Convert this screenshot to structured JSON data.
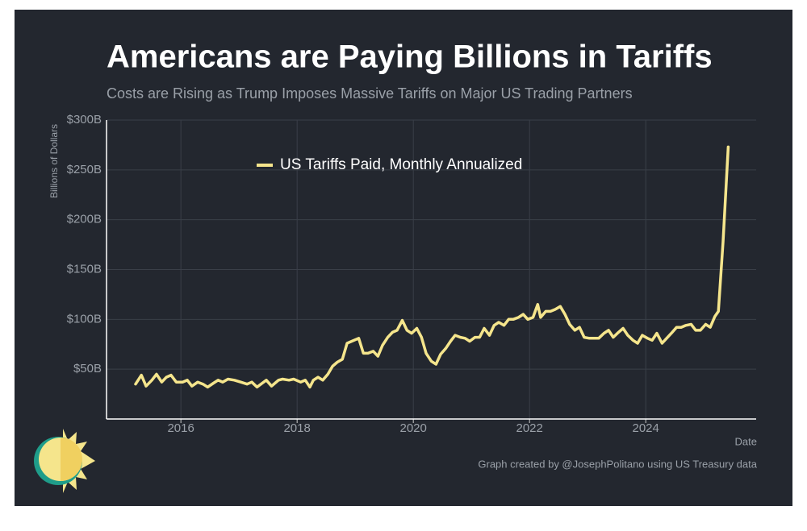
{
  "chart_data": {
    "type": "line",
    "title": "Americans are Paying Billions in Tariffs",
    "subtitle": "Costs are Rising as Trump Imposes Massive Tariffs on Major US Trading Partners",
    "y_label": "Billions of Dollars",
    "x_label": "Date",
    "source": "Graph created by @JosephPolitano using US Treasury data",
    "x": [
      2015.22,
      2015.32,
      2015.4,
      2015.5,
      2015.58,
      2015.67,
      2015.75,
      2015.83,
      2015.92,
      2016.03,
      2016.11,
      2016.19,
      2016.29,
      2016.38,
      2016.46,
      2016.56,
      2016.64,
      2016.72,
      2016.81,
      2016.92,
      2017.03,
      2017.14,
      2017.22,
      2017.31,
      2017.4,
      2017.47,
      2017.56,
      2017.68,
      2017.75,
      2017.86,
      2017.94,
      2018.06,
      2018.14,
      2018.22,
      2018.28,
      2018.36,
      2018.44,
      2018.53,
      2018.61,
      2018.69,
      2018.78,
      2018.86,
      2018.94,
      2019.06,
      2019.14,
      2019.22,
      2019.31,
      2019.39,
      2019.47,
      2019.56,
      2019.64,
      2019.72,
      2019.81,
      2019.89,
      2019.97,
      2020.06,
      2020.14,
      2020.22,
      2020.31,
      2020.39,
      2020.47,
      2020.56,
      2020.64,
      2020.72,
      2020.81,
      2020.89,
      2020.97,
      2021.06,
      2021.14,
      2021.22,
      2021.31,
      2021.39,
      2021.47,
      2021.56,
      2021.64,
      2021.72,
      2021.81,
      2021.89,
      2021.97,
      2022.06,
      2022.14,
      2022.19,
      2022.28,
      2022.36,
      2022.44,
      2022.53,
      2022.61,
      2022.69,
      2022.78,
      2022.86,
      2022.94,
      2023.03,
      2023.11,
      2023.19,
      2023.28,
      2023.36,
      2023.44,
      2023.53,
      2023.61,
      2023.69,
      2023.78,
      2023.86,
      2023.94,
      2024.03,
      2024.11,
      2024.19,
      2024.28,
      2024.36,
      2024.44,
      2024.53,
      2024.61,
      2024.69,
      2024.78,
      2024.86,
      2024.94,
      2025.03,
      2025.11,
      2025.19,
      2025.25,
      2025.33,
      2025.42
    ],
    "series": [
      {
        "name": "US Tariffs Paid, Monthly Annualized",
        "color": "#f5e58c",
        "values": [
          35,
          44,
          33,
          39,
          45,
          37,
          42,
          44,
          37,
          37,
          39,
          33,
          37,
          35,
          32,
          36,
          39,
          37,
          40,
          39,
          37,
          35,
          37,
          32,
          36,
          39,
          33,
          39,
          40,
          39,
          40,
          37,
          39,
          32,
          39,
          42,
          39,
          45,
          53,
          57,
          60,
          76,
          78,
          81,
          66,
          66,
          68,
          63,
          74,
          82,
          87,
          89,
          99,
          89,
          86,
          91,
          82,
          66,
          58,
          55,
          65,
          71,
          78,
          84,
          82,
          81,
          78,
          82,
          82,
          91,
          84,
          94,
          97,
          94,
          100,
          100,
          102,
          105,
          100,
          102,
          115,
          102,
          108,
          108,
          110,
          113,
          105,
          95,
          89,
          92,
          82,
          81,
          81,
          81,
          86,
          89,
          82,
          87,
          91,
          84,
          79,
          76,
          84,
          81,
          79,
          86,
          76,
          81,
          86,
          92,
          92,
          94,
          95,
          89,
          89,
          95,
          92,
          103,
          108,
          178,
          273
        ]
      }
    ],
    "xlim": [
      2014.72,
      2025.9
    ],
    "ylim": [
      0,
      300
    ],
    "xticks": [
      2016,
      2018,
      2020,
      2022,
      2024
    ],
    "yticks": [
      {
        "value": 50,
        "label": "$50B"
      },
      {
        "value": 100,
        "label": "$100B"
      },
      {
        "value": 150,
        "label": "$150B"
      },
      {
        "value": 200,
        "label": "$200B"
      },
      {
        "value": 250,
        "label": "$250B"
      },
      {
        "value": 300,
        "label": "$300B"
      }
    ],
    "grid": true,
    "legend": "top"
  }
}
